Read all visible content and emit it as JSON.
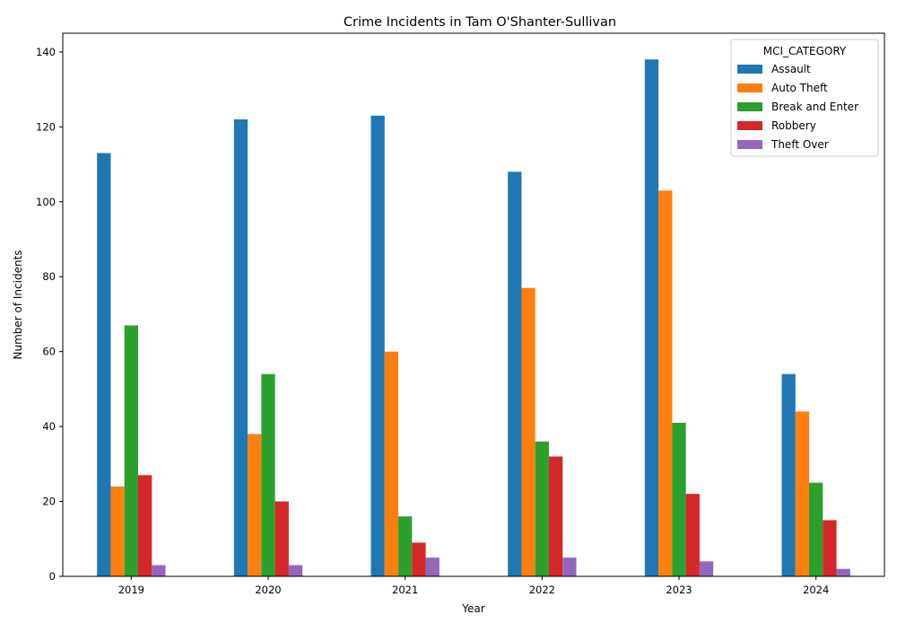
{
  "chart_data": {
    "type": "bar",
    "title": "Crime Incidents in Tam O'Shanter-Sullivan",
    "xlabel": "Year",
    "ylabel": "Number of Incidents",
    "categories": [
      "2019",
      "2020",
      "2021",
      "2022",
      "2023",
      "2024"
    ],
    "ylim": [
      0,
      145
    ],
    "yticks": [
      0,
      20,
      40,
      60,
      80,
      100,
      120,
      140
    ],
    "legend_title": "MCI_CATEGORY",
    "legend_position": "top-right",
    "grid": false,
    "series": [
      {
        "name": "Assault",
        "color": "#1f77b4",
        "values": [
          113,
          122,
          123,
          108,
          138,
          54
        ]
      },
      {
        "name": "Auto Theft",
        "color": "#ff7f0e",
        "values": [
          24,
          38,
          60,
          77,
          103,
          44
        ]
      },
      {
        "name": "Break and Enter",
        "color": "#2ca02c",
        "values": [
          67,
          54,
          16,
          36,
          41,
          25
        ]
      },
      {
        "name": "Robbery",
        "color": "#d62728",
        "values": [
          27,
          20,
          9,
          32,
          22,
          15
        ]
      },
      {
        "name": "Theft Over",
        "color": "#9467bd",
        "values": [
          3,
          3,
          5,
          5,
          4,
          2
        ]
      }
    ]
  }
}
